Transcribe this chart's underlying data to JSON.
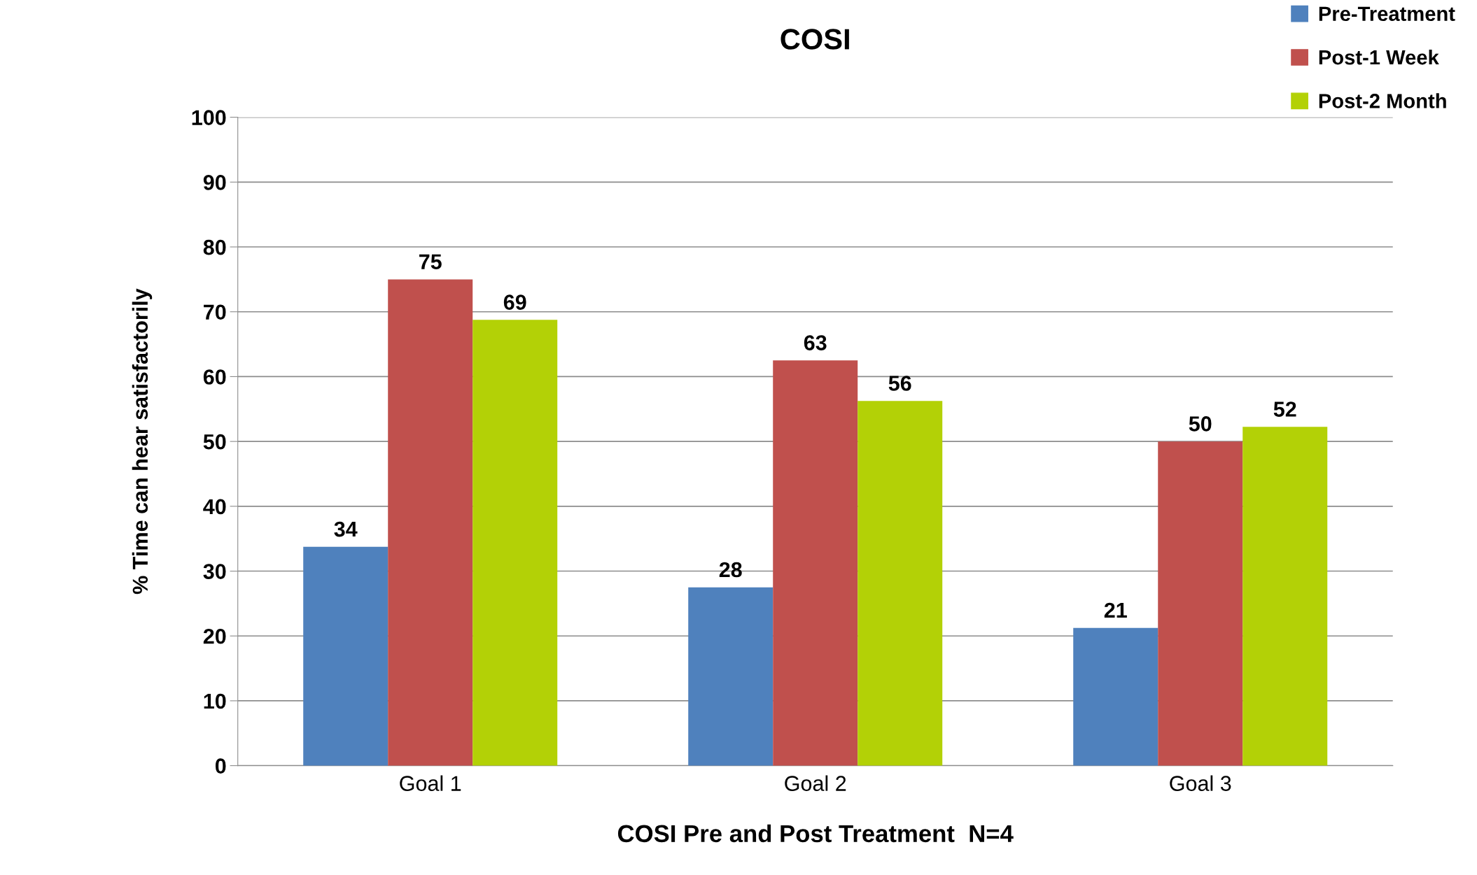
{
  "chart_data": {
    "type": "bar",
    "title": "COSI",
    "xlabel": "COSI Pre and Post Treatment  N=4",
    "ylabel": "% Time can hear satisfactorily",
    "categories": [
      "Goal 1",
      "Goal 2",
      "Goal 3"
    ],
    "series": [
      {
        "name": "Pre-Treatment",
        "color": "#4f81bd",
        "values": [
          33.75,
          27.5,
          21.25
        ],
        "value_labels": [
          "34",
          "28",
          "21"
        ]
      },
      {
        "name": "Post-1 Week",
        "color": "#c0504d",
        "values": [
          75,
          62.5,
          50
        ],
        "value_labels": [
          "75",
          "63",
          "50"
        ]
      },
      {
        "name": "Post-2 Month",
        "color": "#b3d106",
        "values": [
          68.75,
          56.25,
          52.25
        ],
        "value_labels": [
          "69",
          "56",
          "52"
        ]
      }
    ],
    "ylim": [
      0,
      100
    ],
    "yticks": [
      0,
      10,
      20,
      30,
      40,
      50,
      60,
      70,
      80,
      90,
      100
    ],
    "grid": "y",
    "legend": "top right"
  }
}
